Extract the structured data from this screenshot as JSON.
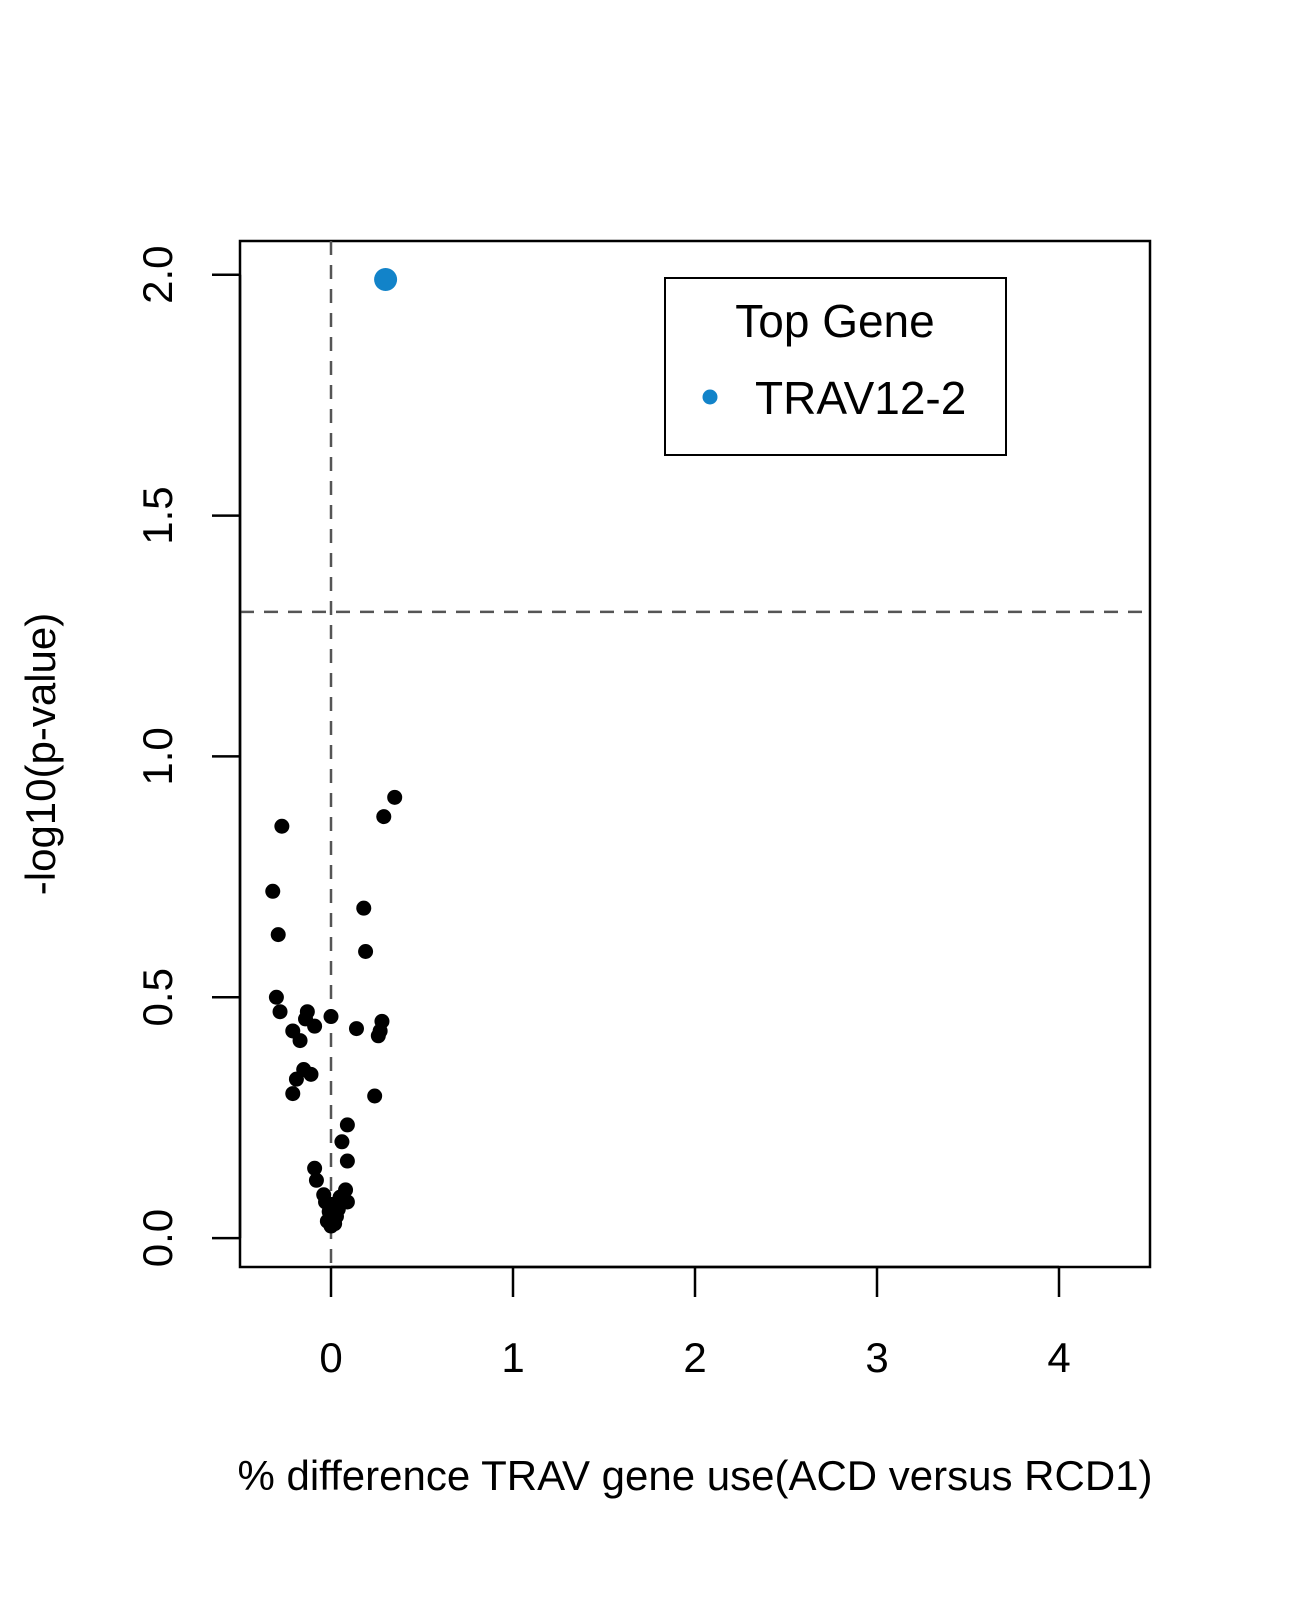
{
  "chart_data": {
    "type": "scatter",
    "xlabel": "% difference TRAV gene use(ACD versus RCD1)",
    "ylabel": "-log10(p-value)",
    "xlim": [
      -0.5,
      4.5
    ],
    "ylim": [
      -0.06,
      2.07
    ],
    "x_ticks": [
      "0",
      "1",
      "2",
      "3",
      "4"
    ],
    "y_ticks": [
      "0.0",
      "0.5",
      "1.0",
      "1.5",
      "2.0"
    ],
    "reference_lines": {
      "vertical_x": 0,
      "horizontal_y": 1.3,
      "style": "dashed",
      "color": "#555555"
    },
    "legend": {
      "title": "Top Gene",
      "entries": [
        {
          "label": "TRAV12-2",
          "color": "#1283c9"
        }
      ],
      "placement": "top-right"
    },
    "series": [
      {
        "name": "TRAV12-2",
        "color": "#1283c9",
        "highlight": true,
        "points": [
          [
            0.3,
            1.99
          ]
        ]
      },
      {
        "color": "#000000",
        "points": [
          [
            0.35,
            0.915
          ],
          [
            0.29,
            0.875
          ],
          [
            -0.27,
            0.855
          ],
          [
            -0.32,
            0.72
          ],
          [
            -0.29,
            0.63
          ],
          [
            0.18,
            0.685
          ],
          [
            0.19,
            0.595
          ],
          [
            -0.3,
            0.5
          ],
          [
            -0.28,
            0.47
          ],
          [
            -0.13,
            0.47
          ],
          [
            -0.14,
            0.455
          ],
          [
            -0.09,
            0.44
          ],
          [
            -0.21,
            0.43
          ],
          [
            -0.17,
            0.41
          ],
          [
            0.0,
            0.46
          ],
          [
            0.14,
            0.435
          ],
          [
            0.28,
            0.45
          ],
          [
            0.27,
            0.43
          ],
          [
            0.26,
            0.42
          ],
          [
            -0.15,
            0.35
          ],
          [
            -0.11,
            0.34
          ],
          [
            -0.19,
            0.33
          ],
          [
            -0.21,
            0.3
          ],
          [
            0.24,
            0.295
          ],
          [
            0.09,
            0.235
          ],
          [
            0.06,
            0.2
          ],
          [
            0.09,
            0.16
          ],
          [
            -0.09,
            0.145
          ],
          [
            -0.08,
            0.12
          ],
          [
            0.08,
            0.1
          ],
          [
            -0.04,
            0.09
          ],
          [
            0.05,
            0.085
          ],
          [
            0.09,
            0.075
          ],
          [
            -0.03,
            0.075
          ],
          [
            0.01,
            0.07
          ],
          [
            0.04,
            0.06
          ],
          [
            -0.01,
            0.055
          ],
          [
            0.03,
            0.045
          ],
          [
            -0.02,
            0.035
          ],
          [
            0.0,
            0.025
          ],
          [
            0.02,
            0.03
          ]
        ]
      }
    ]
  }
}
